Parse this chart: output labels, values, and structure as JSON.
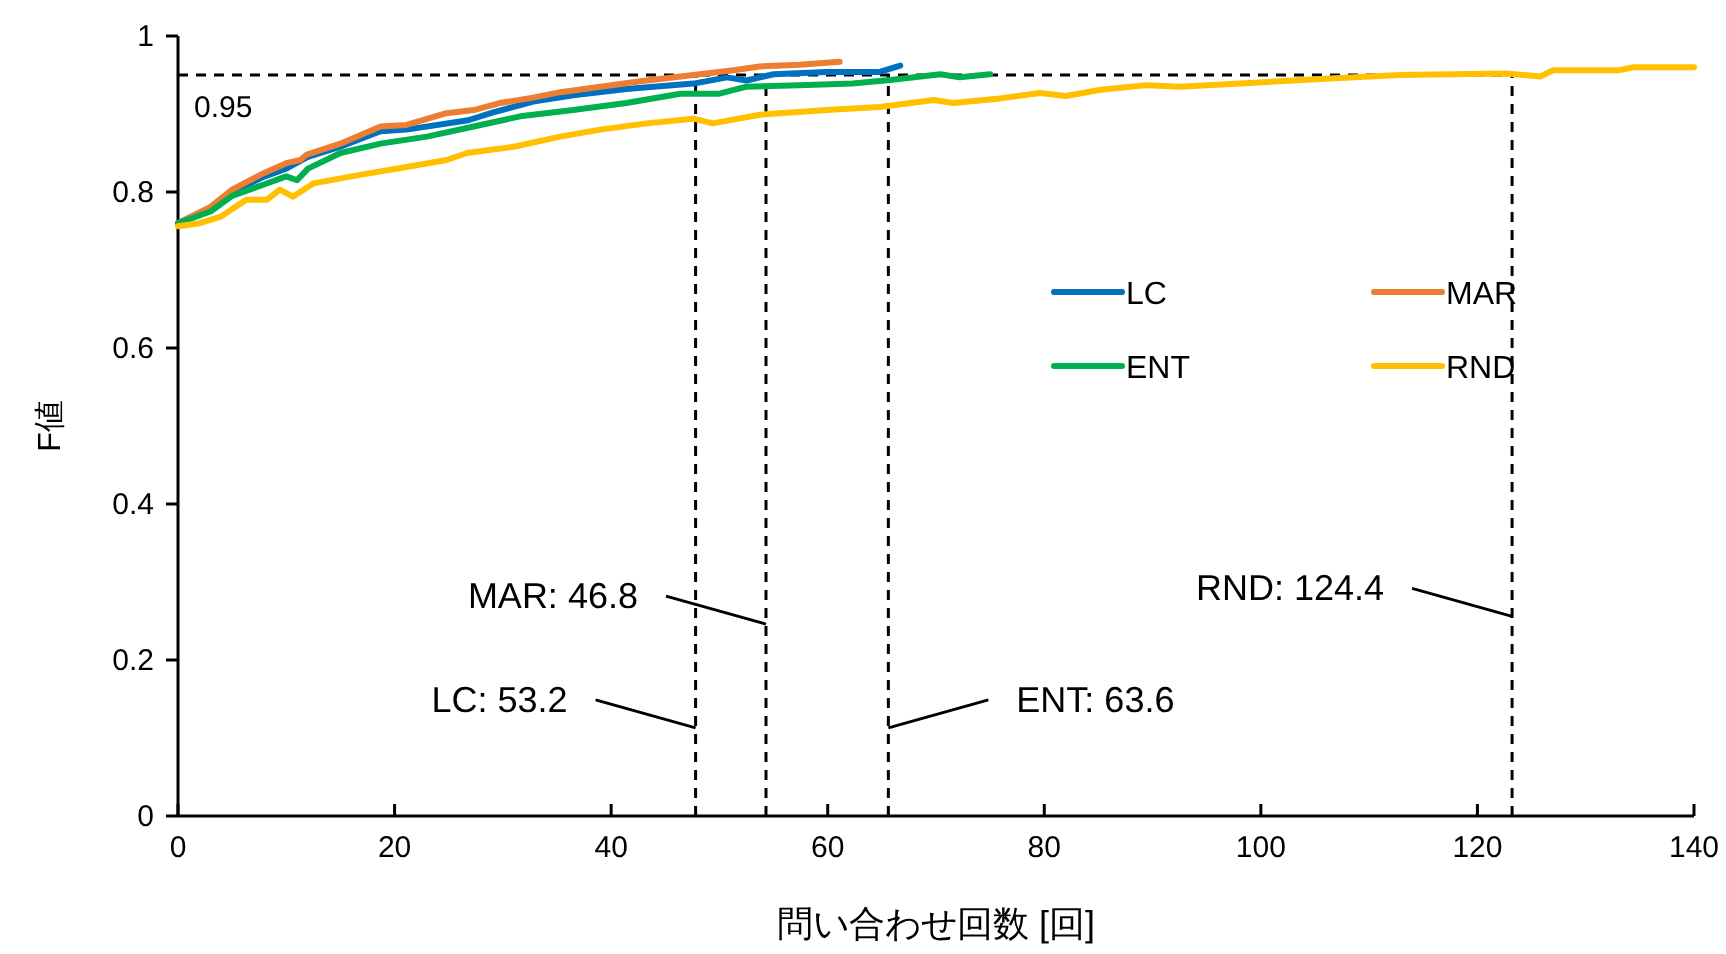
{
  "chart_data": {
    "type": "line",
    "xlabel": "問い合わせ回数 [回]",
    "ylabel": "F値",
    "xlim": [
      0,
      140
    ],
    "xticks": [
      0,
      20,
      40,
      60,
      80,
      100,
      120,
      140
    ],
    "ylim": [
      0,
      1
    ],
    "yticks": [
      0,
      0.2,
      0.4,
      0.6,
      0.8,
      1
    ],
    "grid": false,
    "legend": "right",
    "line_style": "solid",
    "marker": "none",
    "series": [
      {
        "name": "LC",
        "color": "#0070c0",
        "x": [
          0,
          3,
          5,
          8,
          10,
          12,
          15,
          18.7,
          21.1,
          26.8,
          29.1,
          32.8,
          36.5,
          41.4,
          47.6,
          50.7,
          52.5,
          55,
          59.9,
          64.8,
          66.7
        ],
        "values": [
          0.76,
          0.78,
          0.8,
          0.82,
          0.83,
          0.845,
          0.858,
          0.878,
          0.88,
          0.892,
          0.902,
          0.916,
          0.924,
          0.932,
          0.939,
          0.947,
          0.943,
          0.951,
          0.954,
          0.954,
          0.962
        ]
      },
      {
        "name": "MAR",
        "color": "#ed7d31",
        "x": [
          0,
          3,
          5,
          7.6,
          10,
          11.3,
          11.9,
          15,
          18.7,
          21.1,
          24.8,
          27.3,
          29.7,
          32.8,
          35.3,
          39,
          42.7,
          47.6,
          51.3,
          53.7,
          57.4,
          61.1
        ],
        "values": [
          0.76,
          0.781,
          0.803,
          0.822,
          0.837,
          0.841,
          0.848,
          0.862,
          0.884,
          0.886,
          0.901,
          0.905,
          0.914,
          0.921,
          0.928,
          0.935,
          0.942,
          0.95,
          0.956,
          0.961,
          0.963,
          0.967
        ]
      },
      {
        "name": "ENT",
        "color": "#00b050",
        "x": [
          0,
          3,
          5,
          8,
          10,
          11,
          12,
          15,
          18.7,
          23,
          27.3,
          31.6,
          36.5,
          41.4,
          46.4,
          50,
          52.5,
          57.4,
          62.3,
          66,
          70.4,
          72.2,
          75
        ],
        "values": [
          0.76,
          0.775,
          0.795,
          0.81,
          0.82,
          0.815,
          0.83,
          0.85,
          0.862,
          0.871,
          0.884,
          0.897,
          0.905,
          0.914,
          0.926,
          0.926,
          0.935,
          0.937,
          0.939,
          0.944,
          0.951,
          0.947,
          0.951
        ]
      },
      {
        "name": "RND",
        "color": "#ffc000",
        "x": [
          0,
          2,
          3.9,
          6.3,
          8.2,
          9.4,
          10.6,
          12.5,
          16.8,
          21.1,
          24.8,
          26.7,
          31,
          35.3,
          39,
          43.3,
          47.6,
          49.4,
          53.7,
          59.9,
          64.8,
          69.8,
          71.6,
          75.9,
          79.6,
          82,
          85.2,
          89.5,
          92.5,
          98.1,
          105.5,
          112.8,
          122.7,
          125.8,
          127,
          133,
          134.4,
          140
        ],
        "values": [
          0.756,
          0.76,
          0.768,
          0.79,
          0.79,
          0.803,
          0.794,
          0.811,
          0.822,
          0.832,
          0.841,
          0.85,
          0.858,
          0.871,
          0.88,
          0.888,
          0.894,
          0.888,
          0.899,
          0.905,
          0.909,
          0.918,
          0.914,
          0.92,
          0.927,
          0.923,
          0.931,
          0.937,
          0.935,
          0.939,
          0.945,
          0.95,
          0.952,
          0.948,
          0.956,
          0.956,
          0.96,
          0.96
        ]
      }
    ],
    "ref_lines": [
      {
        "axis": "y",
        "value": 0.95,
        "label": "0.95",
        "line_style": "dashed",
        "color": "#000000"
      },
      {
        "axis": "x",
        "value": 47.8,
        "line_style": "dashed",
        "color": "#000000"
      },
      {
        "axis": "x",
        "value": 54.3,
        "line_style": "dashed",
        "color": "#000000"
      },
      {
        "axis": "x",
        "value": 65.6,
        "line_style": "dashed",
        "color": "#000000"
      },
      {
        "axis": "x",
        "value": 123.2,
        "line_style": "dashed",
        "color": "#000000"
      }
    ],
    "annotations": [
      {
        "text": "MAR: 46.8",
        "x": 54.3,
        "y": 0.246
      },
      {
        "text": "LC: 53.2",
        "x": 47.8,
        "y": 0.113
      },
      {
        "text": "ENT: 63.6",
        "x": 65.6,
        "y": 0.113
      },
      {
        "text": "RND: 124.4",
        "x": 123.2,
        "y": 0.256
      }
    ]
  }
}
